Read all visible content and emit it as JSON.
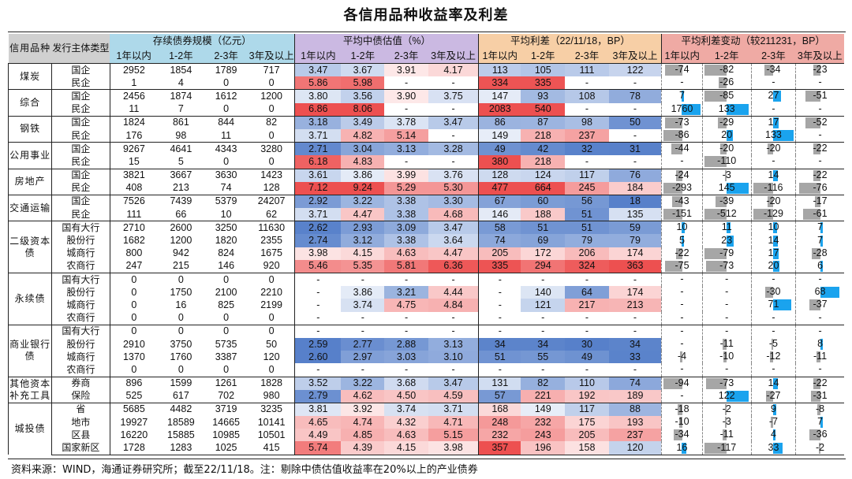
{
  "title": "各信用品种收益率及利差",
  "source": "资料来源：WIND，海通证券研究所；截至22/11/18。注：剔除中债估值收益率在20%以上的产业债券",
  "headers": {
    "category": "信用品种",
    "issuer": "发行主体类型",
    "groups": [
      "存续债券规模（亿元）",
      "平均中债估值（%）",
      "平均利差（22/11/18，BP）",
      "平均利差变动（较211231，BP）"
    ],
    "terms": [
      "1年以内",
      "1-2年",
      "2-3年",
      "3年及以上"
    ]
  },
  "colors": {
    "bar": "#1aa3ee",
    "bar_neg": "#a6a6a6",
    "blue": [
      68,
      114,
      196
    ],
    "red": [
      235,
      60,
      60
    ]
  },
  "groups": [
    {
      "category": "煤炭",
      "rows": [
        {
          "type": "国企",
          "scale": [
            "2952",
            "1854",
            "1789",
            "717"
          ],
          "yield": [
            "3.47",
            "3.67",
            "3.91",
            "4.17"
          ],
          "spread": [
            "113",
            "105",
            "111",
            "122"
          ],
          "change": [
            "-74",
            "-82",
            "-34",
            "-23"
          ]
        },
        {
          "type": "民企",
          "scale": [
            "1",
            "4",
            "0",
            "0"
          ],
          "yield": [
            "5.86",
            "5.98",
            "-",
            "-"
          ],
          "spread": [
            "334",
            "335",
            "-",
            "-"
          ],
          "change": [
            "-",
            "-26",
            "-",
            "-"
          ]
        }
      ]
    },
    {
      "category": "综合",
      "rows": [
        {
          "type": "国企",
          "scale": [
            "2456",
            "1874",
            "1612",
            "1200"
          ],
          "yield": [
            "3.80",
            "3.56",
            "3.90",
            "3.75"
          ],
          "spread": [
            "147",
            "93",
            "108",
            "78"
          ],
          "change": [
            "7",
            "-85",
            "27",
            "-51"
          ]
        },
        {
          "type": "民企",
          "scale": [
            "11",
            "7",
            "0",
            "0"
          ],
          "yield": [
            "6.86",
            "8.06",
            "-",
            "-"
          ],
          "spread": [
            "2083",
            "540",
            "-",
            "-"
          ],
          "change": [
            "1760",
            "133",
            "-",
            "-"
          ]
        }
      ]
    },
    {
      "category": "钢铁",
      "rows": [
        {
          "type": "国企",
          "scale": [
            "1824",
            "861",
            "844",
            "82"
          ],
          "yield": [
            "3.18",
            "3.49",
            "3.78",
            "3.47"
          ],
          "spread": [
            "86",
            "87",
            "98",
            "50"
          ],
          "change": [
            "-73",
            "-29",
            "17",
            "-52"
          ]
        },
        {
          "type": "民企",
          "scale": [
            "176",
            "98",
            "11",
            "0"
          ],
          "yield": [
            "3.71",
            "4.82",
            "5.14",
            "-"
          ],
          "spread": [
            "149",
            "218",
            "237",
            "-"
          ],
          "change": [
            "-86",
            "20",
            "133",
            "-"
          ]
        }
      ]
    },
    {
      "category": "公用事业",
      "rows": [
        {
          "type": "国企",
          "scale": [
            "9267",
            "4641",
            "4343",
            "3280"
          ],
          "yield": [
            "2.71",
            "3.04",
            "3.13",
            "3.28"
          ],
          "spread": [
            "49",
            "42",
            "32",
            "31"
          ],
          "change": [
            "-44",
            "-20",
            "-20",
            "-22"
          ]
        },
        {
          "type": "民企",
          "scale": [
            "15",
            "5",
            "0",
            "0"
          ],
          "yield": [
            "6.18",
            "4.83",
            "-",
            "-"
          ],
          "spread": [
            "380",
            "218",
            "-",
            "-"
          ],
          "change": [
            "-",
            "-110",
            "-",
            "-"
          ]
        }
      ]
    },
    {
      "category": "房地产",
      "rows": [
        {
          "type": "国企",
          "scale": [
            "3821",
            "3667",
            "3630",
            "1423"
          ],
          "yield": [
            "3.61",
            "3.86",
            "3.99",
            "3.76"
          ],
          "spread": [
            "128",
            "124",
            "117",
            "76"
          ],
          "change": [
            "-24",
            "-3",
            "14",
            "-22"
          ]
        },
        {
          "type": "民企",
          "scale": [
            "408",
            "213",
            "74",
            "128"
          ],
          "yield": [
            "7.12",
            "9.24",
            "5.29",
            "5.30"
          ],
          "spread": [
            "477",
            "664",
            "245",
            "184"
          ],
          "change": [
            "-293",
            "145",
            "-116",
            "-76"
          ]
        }
      ]
    },
    {
      "category": "交通运输",
      "rows": [
        {
          "type": "国企",
          "scale": [
            "7526",
            "7439",
            "5379",
            "24207"
          ],
          "yield": [
            "2.92",
            "3.22",
            "3.38",
            "3.30"
          ],
          "spread": [
            "67",
            "60",
            "56",
            "18"
          ],
          "change": [
            "-43",
            "-39",
            "-20",
            "-17"
          ]
        },
        {
          "type": "民企",
          "scale": [
            "111",
            "66",
            "10",
            "62"
          ],
          "yield": [
            "3.71",
            "4.47",
            "3.38",
            "4.68"
          ],
          "spread": [
            "146",
            "188",
            "51",
            "135"
          ],
          "change": [
            "-151",
            "-512",
            "-129",
            "-61"
          ]
        }
      ]
    },
    {
      "category": "二级资本债",
      "rows": [
        {
          "type": "国有大行",
          "scale": [
            "2710",
            "2600",
            "3250",
            "11630"
          ],
          "yield": [
            "2.62",
            "2.93",
            "3.09",
            "3.47"
          ],
          "spread": [
            "58",
            "51",
            "51",
            "59"
          ],
          "change": [
            "10",
            "11",
            "10",
            "7"
          ]
        },
        {
          "type": "股份行",
          "scale": [
            "1682",
            "1200",
            "1820",
            "2355"
          ],
          "yield": [
            "2.74",
            "3.12",
            "3.38",
            "3.64"
          ],
          "spread": [
            "74",
            "69",
            "79",
            "79"
          ],
          "change": [
            "5",
            "23",
            "14",
            "7"
          ]
        },
        {
          "type": "城商行",
          "scale": [
            "800",
            "942",
            "824",
            "1675"
          ],
          "yield": [
            "3.98",
            "4.15",
            "4.63",
            "4.47"
          ],
          "spread": [
            "205",
            "172",
            "206",
            "174"
          ],
          "change": [
            "-22",
            "-79",
            "17",
            "-28"
          ]
        },
        {
          "type": "农商行",
          "scale": [
            "247",
            "215",
            "146",
            "920"
          ],
          "yield": [
            "5.46",
            "5.35",
            "5.81",
            "6.36"
          ],
          "spread": [
            "335",
            "294",
            "324",
            "363"
          ],
          "change": [
            "-75",
            "-73",
            "20",
            "6"
          ]
        }
      ]
    },
    {
      "category": "永续债",
      "rows": [
        {
          "type": "国有大行",
          "scale": [
            "0",
            "0",
            "0",
            "0"
          ],
          "yield": [
            "-",
            "-",
            "-",
            "-"
          ],
          "spread": [
            "-",
            "-",
            "-",
            "-"
          ],
          "change": [
            "-",
            "-",
            "-",
            "-"
          ]
        },
        {
          "type": "股份行",
          "scale": [
            "0",
            "1750",
            "2100",
            "2210"
          ],
          "yield": [
            "-",
            "3.86",
            "3.21",
            "4.44"
          ],
          "spread": [
            "-",
            "140",
            "64",
            "174"
          ],
          "change": [
            "-",
            "-",
            "-30",
            "68"
          ]
        },
        {
          "type": "城商行",
          "scale": [
            "0",
            "16",
            "825",
            "2199"
          ],
          "yield": [
            "-",
            "3.74",
            "4.75",
            "4.84"
          ],
          "spread": [
            "-",
            "121",
            "217",
            "213"
          ],
          "change": [
            "-",
            "-",
            "71",
            "-37"
          ]
        },
        {
          "type": "农商行",
          "scale": [
            "0",
            "0",
            "0",
            "0"
          ],
          "yield": [
            "-",
            "-",
            "-",
            "-"
          ],
          "spread": [
            "-",
            "-",
            "-",
            "-"
          ],
          "change": [
            "-",
            "-",
            "-",
            "-"
          ]
        }
      ]
    },
    {
      "category": "商业银行债",
      "rows": [
        {
          "type": "国有大行",
          "scale": [
            "0",
            "0",
            "0",
            "0"
          ],
          "yield": [
            "-",
            "-",
            "-",
            "-"
          ],
          "spread": [
            "-",
            "-",
            "-",
            "-"
          ],
          "change": [
            "-",
            "-",
            "-",
            "-"
          ]
        },
        {
          "type": "股份行",
          "scale": [
            "2910",
            "3750",
            "5735",
            "50"
          ],
          "yield": [
            "2.59",
            "2.77",
            "2.88",
            "3.13"
          ],
          "spread": [
            "34",
            "34",
            "30",
            "34"
          ],
          "change": [
            "-",
            "-11",
            "-5",
            "8"
          ]
        },
        {
          "type": "城商行",
          "scale": [
            "1370",
            "1760",
            "3387",
            "120"
          ],
          "yield": [
            "2.60",
            "2.97",
            "3.03",
            "3.10"
          ],
          "spread": [
            "51",
            "55",
            "49",
            "33"
          ],
          "change": [
            "-4",
            "-10",
            "-12",
            "-11"
          ]
        },
        {
          "type": "农商行",
          "scale": [
            "0",
            "0",
            "0",
            "0"
          ],
          "yield": [
            "-",
            "-",
            "-",
            "-"
          ],
          "spread": [
            "-",
            "-",
            "-",
            "-"
          ],
          "change": [
            "-",
            "-",
            "-",
            "-"
          ]
        }
      ]
    },
    {
      "category": "其他资本补充工具",
      "rows": [
        {
          "type": "券商",
          "scale": [
            "896",
            "1599",
            "1261",
            "1828"
          ],
          "yield": [
            "3.52",
            "3.22",
            "3.68",
            "3.47"
          ],
          "spread": [
            "131",
            "82",
            "110",
            "74"
          ],
          "change": [
            "-94",
            "-73",
            "14",
            "-22"
          ]
        },
        {
          "type": "保险",
          "scale": [
            "525",
            "617",
            "702",
            "980"
          ],
          "yield": [
            "2.79",
            "4.62",
            "4.50",
            "4.59"
          ],
          "spread": [
            "57",
            "221",
            "192",
            "189"
          ],
          "change": [
            "-",
            "122",
            "-27",
            "-31"
          ]
        }
      ]
    },
    {
      "category": "城投债",
      "rows": [
        {
          "type": "省",
          "scale": [
            "5685",
            "4482",
            "3719",
            "3235"
          ],
          "yield": [
            "3.81",
            "3.92",
            "3.74",
            "3.71"
          ],
          "spread": [
            "168",
            "149",
            "117",
            "88"
          ],
          "change": [
            "-18",
            "-2",
            "9",
            "-8"
          ]
        },
        {
          "type": "地市",
          "scale": [
            "19927",
            "18589",
            "14665",
            "10141"
          ],
          "yield": [
            "4.65",
            "4.74",
            "4.32",
            "4.71"
          ],
          "spread": [
            "248",
            "232",
            "175",
            "193"
          ],
          "change": [
            "-10",
            "-3",
            "-7",
            "7"
          ]
        },
        {
          "type": "区县",
          "scale": [
            "16220",
            "15885",
            "10985",
            "10501"
          ],
          "yield": [
            "4.49",
            "4.85",
            "4.63",
            "5.15"
          ],
          "spread": [
            "232",
            "243",
            "205",
            "237"
          ],
          "change": [
            "-34",
            "-11",
            "4",
            "-36"
          ]
        },
        {
          "type": "国家新区",
          "scale": [
            "1728",
            "1283",
            "1025",
            "415"
          ],
          "yield": [
            "5.74",
            "4.39",
            "4.15",
            "3.98"
          ],
          "spread": [
            "357",
            "196",
            "158",
            "120"
          ],
          "change": [
            "16",
            "-117",
            "33",
            "-2"
          ]
        }
      ]
    }
  ]
}
